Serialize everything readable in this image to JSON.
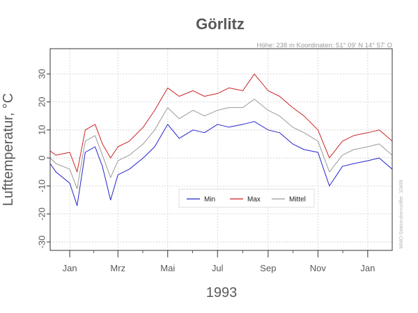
{
  "chart_data": {
    "type": "line",
    "title": "Görlitz",
    "subtitle": "Höhe: 238 m   Koordinaten: 51° 09' N  14° 57' O",
    "xlabel": "1993",
    "ylabel": "Lufttemperatur, °C",
    "side_note": "WMO-Stationskennziffer: 10499",
    "ylim": [
      -33,
      39
    ],
    "y_ticks": [
      -30,
      -20,
      -10,
      0,
      10,
      20,
      30
    ],
    "xlim": [
      "1992-12-08",
      "1994-01-31"
    ],
    "x_ticks": [
      {
        "date": "1993-01-01",
        "label": "Jan"
      },
      {
        "date": "1993-03-01",
        "label": "Mrz"
      },
      {
        "date": "1993-05-01",
        "label": "Mai"
      },
      {
        "date": "1993-07-01",
        "label": "Jul"
      },
      {
        "date": "1993-09-01",
        "label": "Sep"
      },
      {
        "date": "1993-11-01",
        "label": "Nov"
      },
      {
        "date": "1994-01-01",
        "label": "Jan"
      }
    ],
    "grid": true,
    "legend_position": "center",
    "series": [
      {
        "name": "Min",
        "color": "#2222cc",
        "x": [
          "1992-12-01",
          "1992-12-15",
          "1993-01-01",
          "1993-01-10",
          "1993-01-20",
          "1993-02-01",
          "1993-02-10",
          "1993-02-20",
          "1993-03-01",
          "1993-03-15",
          "1993-04-01",
          "1993-04-15",
          "1993-05-01",
          "1993-05-15",
          "1993-06-01",
          "1993-06-15",
          "1993-07-01",
          "1993-07-15",
          "1993-08-01",
          "1993-08-15",
          "1993-09-01",
          "1993-09-15",
          "1993-10-01",
          "1993-10-15",
          "1993-11-01",
          "1993-11-15",
          "1993-12-01",
          "1993-12-15",
          "1994-01-01",
          "1994-01-15",
          "1994-01-31"
        ],
        "values": [
          1,
          -5,
          -9,
          -17,
          2,
          4,
          -3,
          -15,
          -6,
          -4,
          0,
          4,
          12,
          7,
          10,
          9,
          12,
          11,
          12,
          13,
          10,
          9,
          5,
          3,
          2,
          -10,
          -3,
          -2,
          -1,
          0,
          -4
        ]
      },
      {
        "name": "Max",
        "color": "#cc2222",
        "x": [
          "1992-12-01",
          "1992-12-15",
          "1993-01-01",
          "1993-01-10",
          "1993-01-20",
          "1993-02-01",
          "1993-02-10",
          "1993-02-20",
          "1993-03-01",
          "1993-03-15",
          "1993-04-01",
          "1993-04-15",
          "1993-05-01",
          "1993-05-15",
          "1993-06-01",
          "1993-06-15",
          "1993-07-01",
          "1993-07-15",
          "1993-08-01",
          "1993-08-15",
          "1993-09-01",
          "1993-09-15",
          "1993-10-01",
          "1993-10-15",
          "1993-11-01",
          "1993-11-15",
          "1993-12-01",
          "1993-12-15",
          "1994-01-01",
          "1994-01-15",
          "1994-01-31"
        ],
        "values": [
          4,
          1,
          2,
          -5,
          10,
          12,
          5,
          0,
          4,
          6,
          11,
          17,
          25,
          22,
          24,
          22,
          23,
          25,
          24,
          30,
          24,
          22,
          18,
          15,
          10,
          0,
          6,
          8,
          9,
          10,
          6
        ]
      },
      {
        "name": "Mittel",
        "color": "#999999",
        "x": [
          "1992-12-01",
          "1992-12-15",
          "1993-01-01",
          "1993-01-10",
          "1993-01-20",
          "1993-02-01",
          "1993-02-10",
          "1993-02-20",
          "1993-03-01",
          "1993-03-15",
          "1993-04-01",
          "1993-04-15",
          "1993-05-01",
          "1993-05-15",
          "1993-06-01",
          "1993-06-15",
          "1993-07-01",
          "1993-07-15",
          "1993-08-01",
          "1993-08-15",
          "1993-09-01",
          "1993-09-15",
          "1993-10-01",
          "1993-10-15",
          "1993-11-01",
          "1993-11-15",
          "1993-12-01",
          "1993-12-15",
          "1994-01-01",
          "1994-01-15",
          "1994-01-31"
        ],
        "values": [
          2,
          -2,
          -4,
          -11,
          6,
          8,
          1,
          -7,
          -1,
          1,
          5,
          10,
          18,
          14,
          17,
          15,
          17,
          18,
          18,
          21,
          17,
          15,
          11,
          9,
          6,
          -5,
          1,
          3,
          4,
          5,
          1
        ]
      }
    ]
  }
}
